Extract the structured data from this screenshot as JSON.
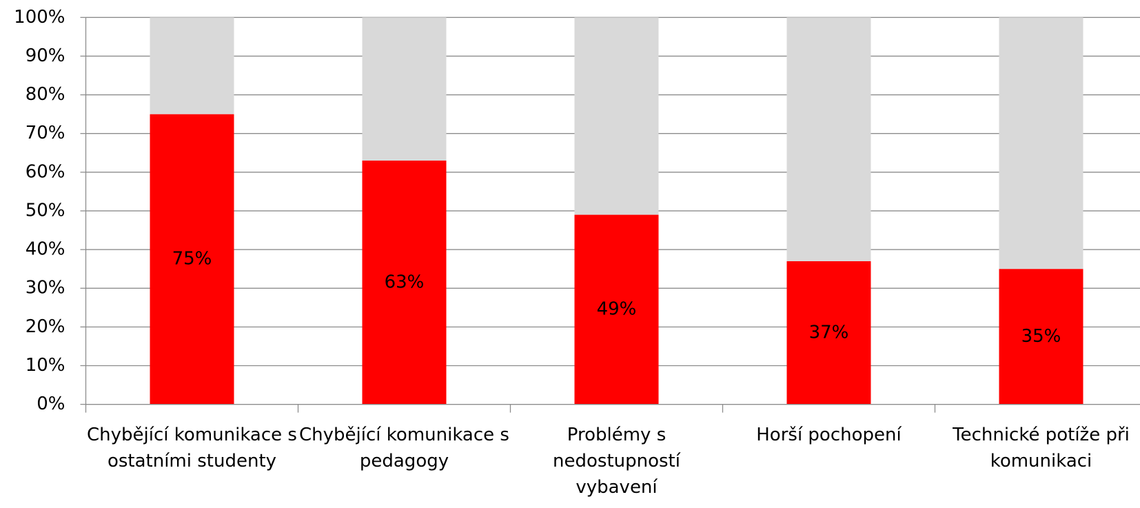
{
  "chart_data": {
    "type": "stacked-bar",
    "categories": [
      "Chybějící komunikace s ostatními studenty",
      "Chybějící komunikace s pedagogy",
      "Problémy s nedostupností vybavení",
      "Horší pochopení",
      "Technické potíže při komunikaci"
    ],
    "series": [
      {
        "color": "#ff0000",
        "values": [
          75,
          63,
          49,
          37,
          35
        ],
        "value_labels": [
          "75%",
          "63%",
          "49%",
          "37%",
          "35%"
        ]
      },
      {
        "color": "#d9d9d9",
        "values": [
          25,
          37,
          51,
          63,
          65
        ]
      }
    ],
    "ylim": [
      0,
      100
    ],
    "yticks": [
      {
        "value": 0,
        "label": "0%"
      },
      {
        "value": 10,
        "label": "10%"
      },
      {
        "value": 20,
        "label": "20%"
      },
      {
        "value": 30,
        "label": "30%"
      },
      {
        "value": 40,
        "label": "40%"
      },
      {
        "value": 50,
        "label": "50%"
      },
      {
        "value": 60,
        "label": "60%"
      },
      {
        "value": 70,
        "label": "70%"
      },
      {
        "value": 80,
        "label": "80%"
      },
      {
        "value": 90,
        "label": "90%"
      },
      {
        "value": 100,
        "label": "100%"
      }
    ],
    "grid": true
  }
}
